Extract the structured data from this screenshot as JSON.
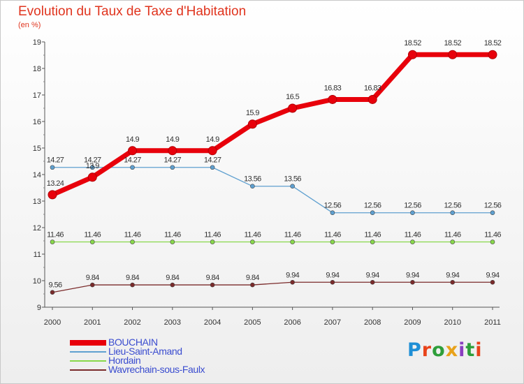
{
  "title": "Evolution du Taux de Taxe d'Habitation",
  "subtitle": "(en %)",
  "brand": {
    "text": "Proxiti",
    "letter_colors": [
      "#1f8fd6",
      "#e8431a",
      "#2e9e3a",
      "#e8a21a",
      "#8a3ec0",
      "#2e9e3a",
      "#e8431a"
    ]
  },
  "chart_data": {
    "type": "line",
    "title": "Evolution du Taux de Taxe d'Habitation",
    "subtitle": "(en %)",
    "xlabel": "",
    "ylabel": "",
    "categories": [
      "2000",
      "2001",
      "2002",
      "2003",
      "2004",
      "2005",
      "2006",
      "2007",
      "2008",
      "2009",
      "2010",
      "2011"
    ],
    "ylim": [
      9,
      19
    ],
    "yticks": [
      "9",
      "10",
      "11",
      "12",
      "13",
      "14",
      "15",
      "16",
      "17",
      "18",
      "19"
    ],
    "grid": false,
    "legend_position": "bottom-left",
    "series": [
      {
        "name": "BOUCHAIN",
        "color": "#e8000b",
        "values": [
          13.24,
          13.9,
          14.9,
          14.9,
          14.9,
          15.9,
          16.5,
          16.83,
          16.83,
          18.52,
          18.52,
          18.52
        ],
        "labels": [
          "13.24",
          "13.9",
          "14.9",
          "14.9",
          "14.9",
          "15.9",
          "16.5",
          "16.83",
          "16.83",
          "18.52",
          "18.52",
          "18.52"
        ]
      },
      {
        "name": "Lieu-Saint-Amand",
        "color": "#5fa0d0",
        "values": [
          14.27,
          14.27,
          14.27,
          14.27,
          14.27,
          13.56,
          13.56,
          12.56,
          12.56,
          12.56,
          12.56,
          12.56
        ],
        "labels": [
          "14.27",
          "14.27",
          "14.27",
          "14.27",
          "14.27",
          "13.56",
          "13.56",
          "12.56",
          "12.56",
          "12.56",
          "12.56",
          "12.56"
        ]
      },
      {
        "name": "Hordain",
        "color": "#88d84a",
        "values": [
          11.46,
          11.46,
          11.46,
          11.46,
          11.46,
          11.46,
          11.46,
          11.46,
          11.46,
          11.46,
          11.46,
          11.46
        ],
        "labels": [
          "11.46",
          "11.46",
          "11.46",
          "11.46",
          "11.46",
          "11.46",
          "11.46",
          "11.46",
          "11.46",
          "11.46",
          "11.46",
          "11.46"
        ]
      },
      {
        "name": "Wavrechain-sous-Faulx",
        "color": "#7a2a2a",
        "values": [
          9.56,
          9.84,
          9.84,
          9.84,
          9.84,
          9.84,
          9.94,
          9.94,
          9.94,
          9.94,
          9.94,
          9.94
        ],
        "labels": [
          "9.56",
          "9.84",
          "9.84",
          "9.84",
          "9.84",
          "9.84",
          "9.94",
          "9.94",
          "9.94",
          "9.94",
          "9.94",
          "9.94"
        ]
      }
    ]
  }
}
